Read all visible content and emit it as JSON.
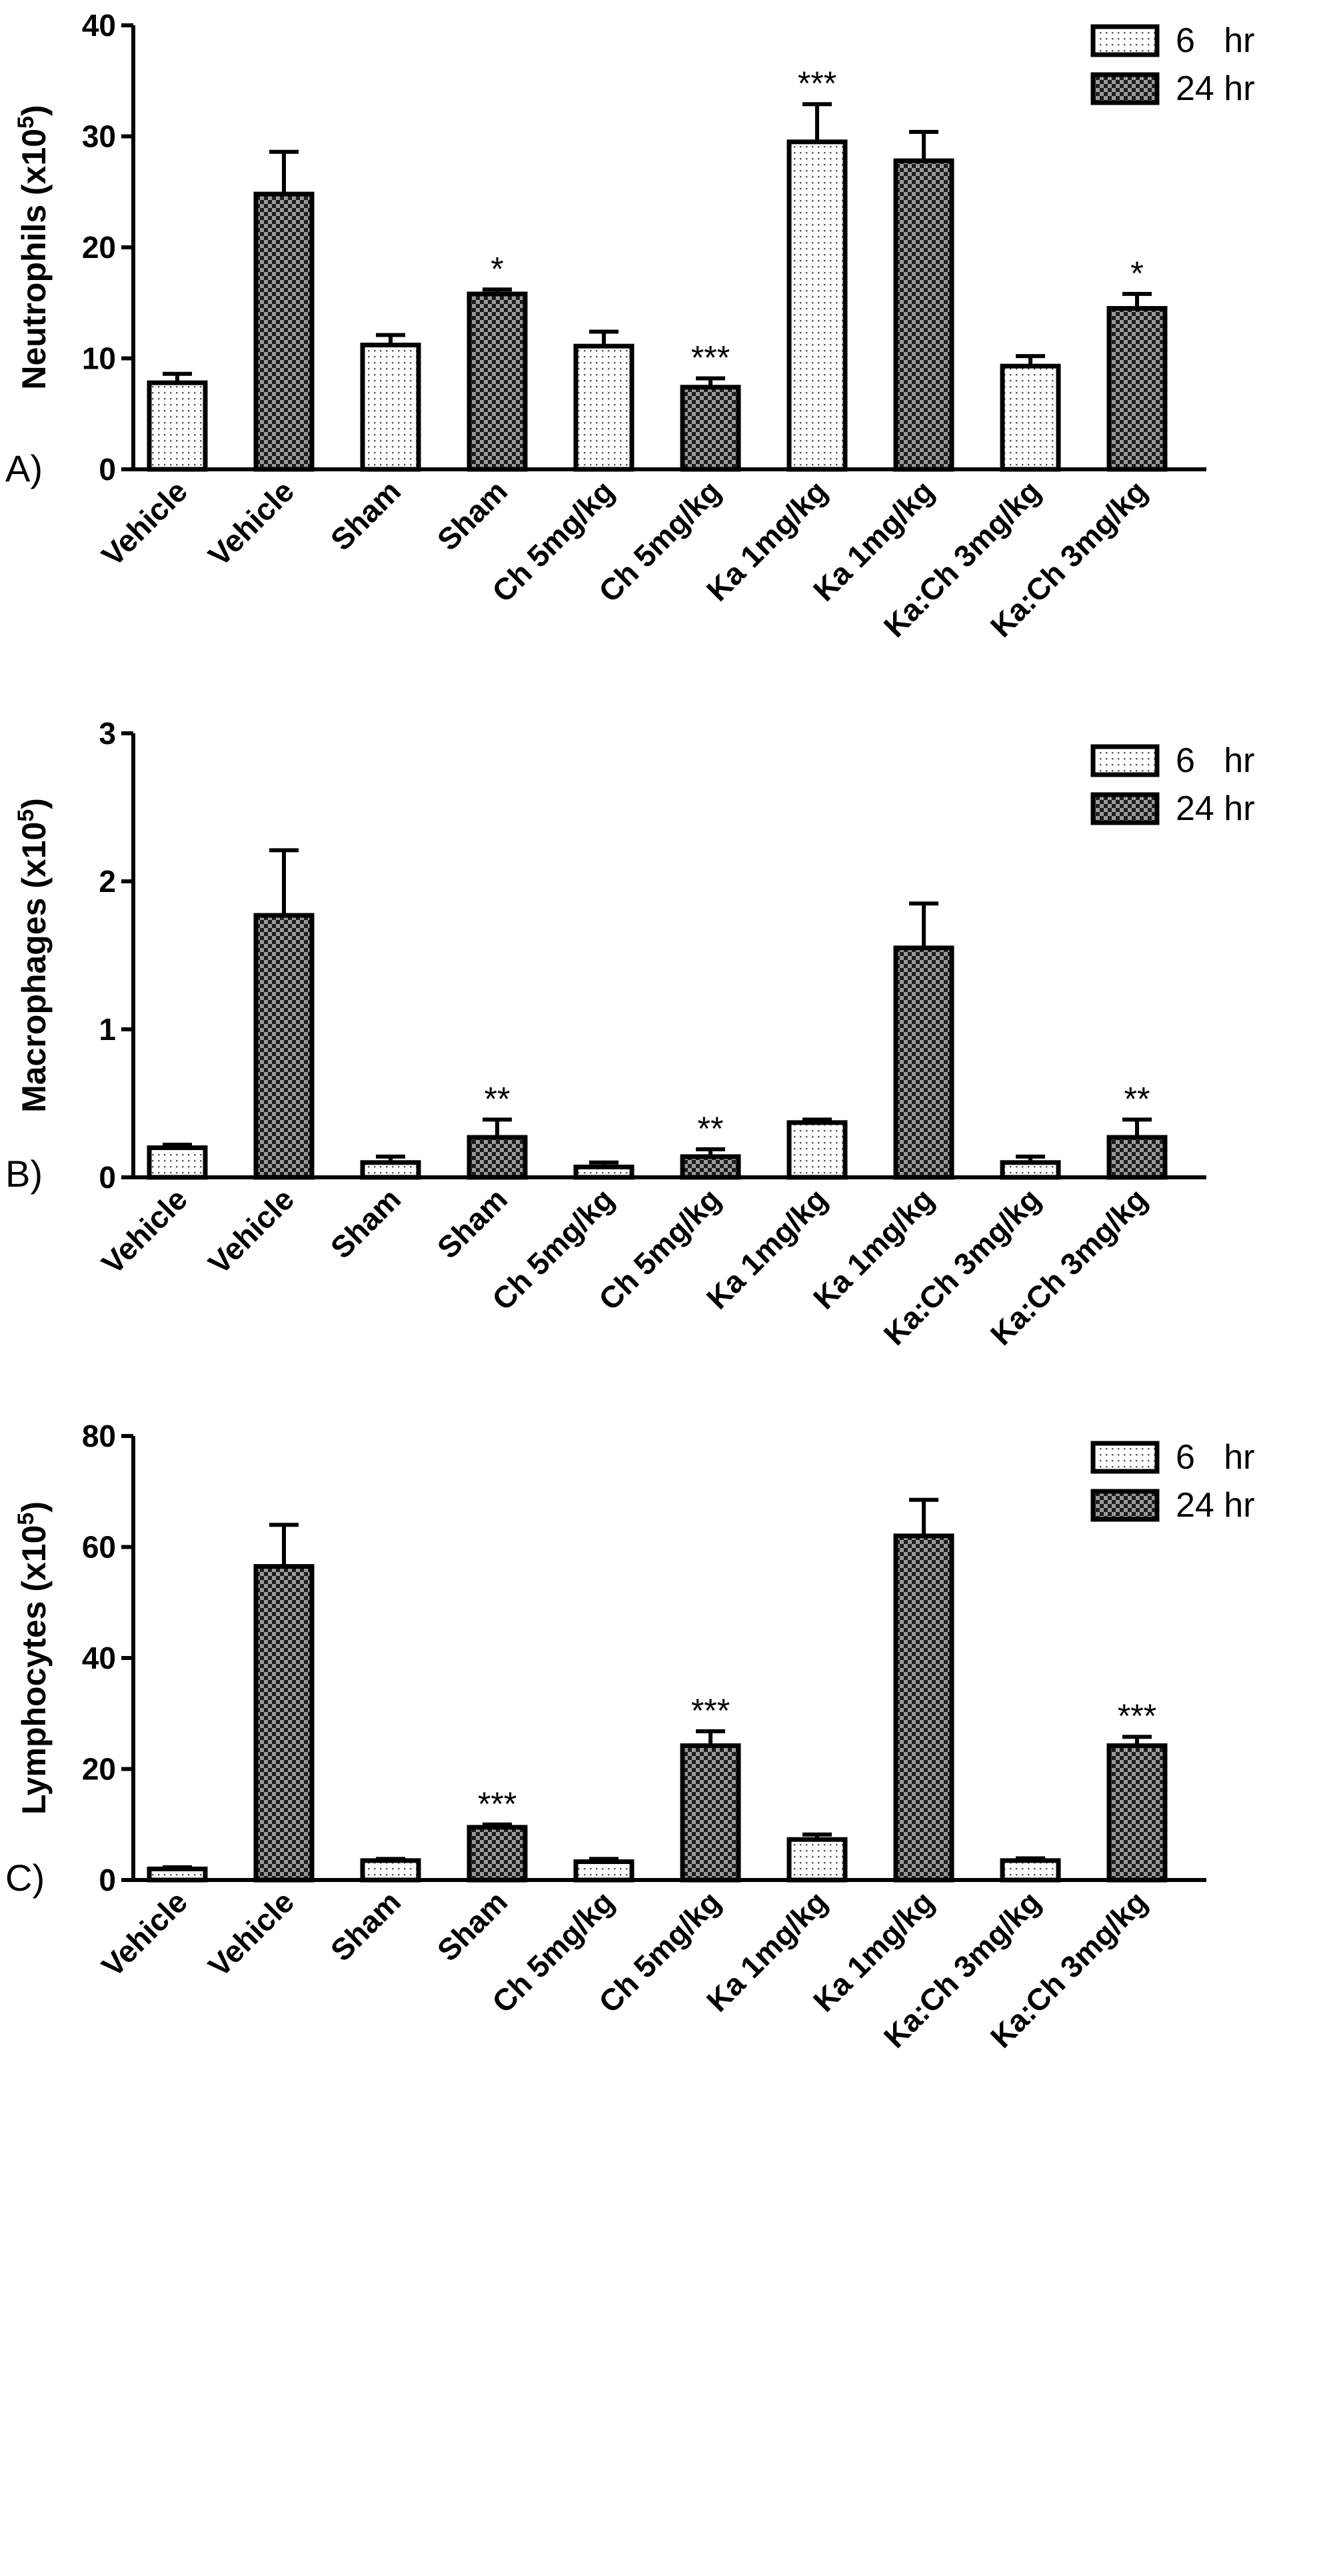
{
  "chart_data": [
    {
      "type": "bar",
      "panel": "A)",
      "ylabel_prefix": "Neutrophils (x10",
      "ylabel_exp": "5",
      "ylabel_suffix": ")",
      "ylim": [
        0,
        40
      ],
      "yticks": [
        "0",
        "10",
        "20",
        "30",
        "40"
      ],
      "categories": [
        "Vehicle",
        "Vehicle",
        "Sham",
        "Sham",
        "Ch 5mg/kg",
        "Ch 5mg/kg",
        "Ka 1mg/kg",
        "Ka 1mg/kg",
        "Ka:Ch 3mg/kg",
        "Ka:Ch 3mg/kg"
      ],
      "series_of_bar": [
        "6 hr",
        "24 hr",
        "6 hr",
        "24 hr",
        "6 hr",
        "24 hr",
        "6 hr",
        "24 hr",
        "6 hr",
        "24 hr"
      ],
      "values": [
        7.8,
        24.8,
        11.2,
        15.8,
        11.1,
        7.4,
        29.5,
        27.8,
        9.3,
        14.5
      ],
      "errors": [
        0.8,
        3.8,
        0.9,
        0.4,
        1.3,
        0.8,
        3.4,
        2.6,
        0.9,
        1.3
      ],
      "significance": [
        "",
        "",
        "",
        "*",
        "",
        "***",
        "***",
        "",
        "",
        "*"
      ],
      "legend": [
        "6   hr",
        "24 hr"
      ]
    },
    {
      "type": "bar",
      "panel": "B)",
      "ylabel_prefix": "Macrophages (x10",
      "ylabel_exp": "5",
      "ylabel_suffix": ")",
      "ylim": [
        0,
        3
      ],
      "yticks": [
        "0",
        "1",
        "2",
        "3"
      ],
      "categories": [
        "Vehicle",
        "Vehicle",
        "Sham",
        "Sham",
        "Ch 5mg/kg",
        "Ch 5mg/kg",
        "Ka 1mg/kg",
        "Ka 1mg/kg",
        "Ka:Ch 3mg/kg",
        "Ka:Ch 3mg/kg"
      ],
      "series_of_bar": [
        "6 hr",
        "24 hr",
        "6 hr",
        "24 hr",
        "6 hr",
        "24 hr",
        "6 hr",
        "24 hr",
        "6 hr",
        "24 hr"
      ],
      "values": [
        0.2,
        1.77,
        0.1,
        0.27,
        0.07,
        0.14,
        0.37,
        1.55,
        0.1,
        0.27
      ],
      "errors": [
        0.02,
        0.44,
        0.04,
        0.12,
        0.03,
        0.05,
        0.02,
        0.3,
        0.04,
        0.12
      ],
      "significance": [
        "",
        "",
        "",
        "**",
        "",
        "**",
        "",
        "",
        "",
        "**"
      ],
      "legend": [
        "6   hr",
        "24 hr"
      ]
    },
    {
      "type": "bar",
      "panel": "C)",
      "ylabel_prefix": "Lymphocytes (x10",
      "ylabel_exp": "5",
      "ylabel_suffix": ")",
      "ylim": [
        0,
        80
      ],
      "yticks": [
        "0",
        "20",
        "40",
        "60",
        "80"
      ],
      "categories": [
        "Vehicle",
        "Vehicle",
        "Sham",
        "Sham",
        "Ch 5mg/kg",
        "Ch 5mg/kg",
        "Ka 1mg/kg",
        "Ka 1mg/kg",
        "Ka:Ch 3mg/kg",
        "Ka:Ch 3mg/kg"
      ],
      "series_of_bar": [
        "6 hr",
        "24 hr",
        "6 hr",
        "24 hr",
        "6 hr",
        "24 hr",
        "6 hr",
        "24 hr",
        "6 hr",
        "24 hr"
      ],
      "values": [
        2.0,
        56.5,
        3.5,
        9.5,
        3.3,
        24.2,
        7.3,
        62.0,
        3.5,
        24.2
      ],
      "errors": [
        0.3,
        7.5,
        0.3,
        0.5,
        0.5,
        2.6,
        0.9,
        6.5,
        0.4,
        1.6
      ],
      "significance": [
        "",
        "",
        "",
        "***",
        "",
        "***",
        "",
        "",
        "",
        "***"
      ],
      "legend": [
        "6   hr",
        "24 hr"
      ]
    }
  ]
}
